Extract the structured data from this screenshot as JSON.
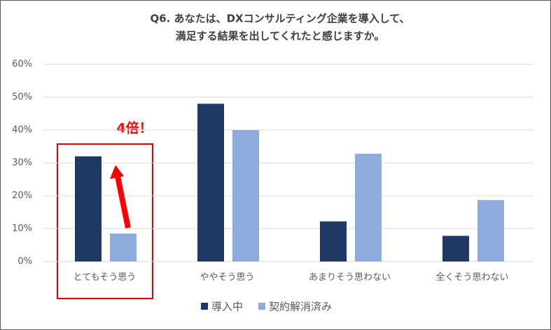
{
  "chart_data": {
    "type": "bar",
    "title": [
      "Q6. あなたは、DXコンサルティング企業を導入して、",
      "満足する結果を出してくれたと感じますか。"
    ],
    "annotation": "4倍！",
    "categories": [
      "とてもそう思う",
      "ややそう思う",
      "あまりそう思わない",
      "全くそう思わない"
    ],
    "series": [
      {
        "name": "導入中",
        "color": "#203864",
        "values": [
          32,
          48,
          12.2,
          7.8
        ]
      },
      {
        "name": "契約解消済み",
        "color": "#8faadc",
        "values": [
          8.5,
          40,
          32.8,
          18.7
        ]
      }
    ],
    "ylim": [
      0,
      60
    ],
    "yticks": [
      {
        "value": 0,
        "label": "0%"
      },
      {
        "value": 10,
        "label": "10%"
      },
      {
        "value": 20,
        "label": "20%"
      },
      {
        "value": 30,
        "label": "30%"
      },
      {
        "value": 40,
        "label": "40%"
      },
      {
        "value": 50,
        "label": "50%"
      },
      {
        "value": 60,
        "label": "60%"
      }
    ],
    "grid": true,
    "legend": "bottom"
  }
}
